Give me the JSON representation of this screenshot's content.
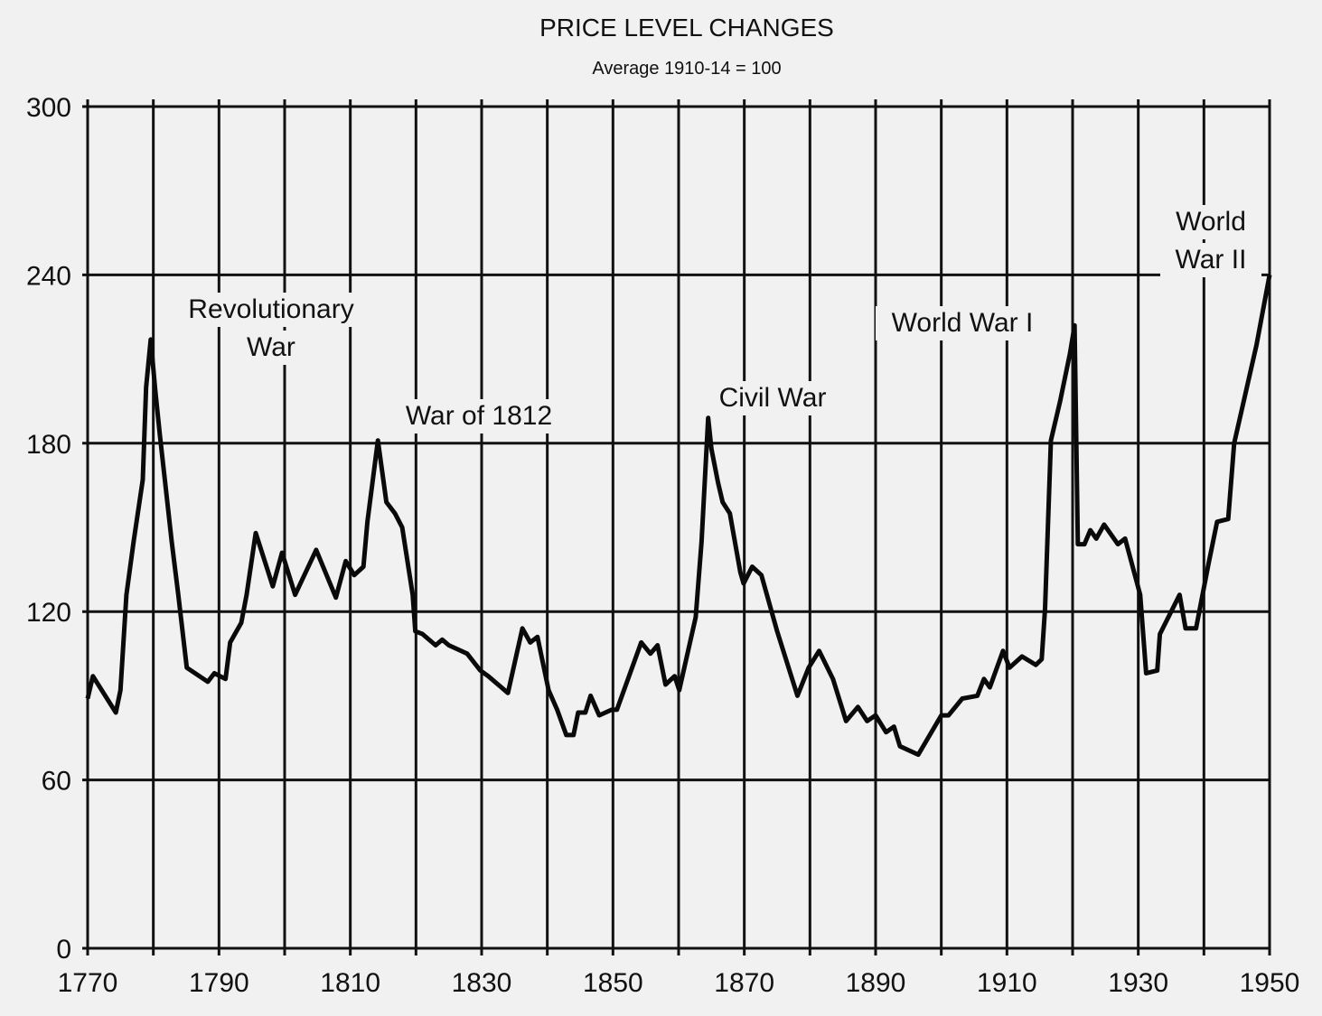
{
  "chart_data": {
    "type": "line",
    "title": "PRICE LEVEL CHANGES",
    "subtitle": "Average 1910-14 = 100",
    "xlabel": "",
    "ylabel": "",
    "xlim": [
      1770,
      1950
    ],
    "ylim": [
      0,
      300
    ],
    "grid": true,
    "x_ticks": [
      1770,
      1790,
      1810,
      1830,
      1850,
      1870,
      1890,
      1910,
      1930,
      1950
    ],
    "y_ticks": [
      0,
      60,
      120,
      180,
      240,
      300
    ],
    "series": [
      {
        "name": "Price level",
        "points": [
          [
            1770,
            89
          ],
          [
            1770.8,
            97
          ],
          [
            1774.3,
            84
          ],
          [
            1775,
            92
          ],
          [
            1775.9,
            126
          ],
          [
            1777,
            145
          ],
          [
            1778.4,
            167
          ],
          [
            1778.9,
            200
          ],
          [
            1779.6,
            217
          ],
          [
            1780.3,
            199
          ],
          [
            1781,
            183
          ],
          [
            1782.8,
            145
          ],
          [
            1783.8,
            126
          ],
          [
            1785.1,
            100
          ],
          [
            1788.3,
            95
          ],
          [
            1789.3,
            98
          ],
          [
            1791,
            96
          ],
          [
            1791.7,
            109
          ],
          [
            1793.4,
            116
          ],
          [
            1794.2,
            126
          ],
          [
            1795.6,
            148
          ],
          [
            1798.2,
            129
          ],
          [
            1799.6,
            141
          ],
          [
            1801.6,
            126
          ],
          [
            1804.8,
            142
          ],
          [
            1807.8,
            125
          ],
          [
            1809.3,
            138
          ],
          [
            1810.6,
            133
          ],
          [
            1812,
            136
          ],
          [
            1812.6,
            152
          ],
          [
            1814.2,
            181
          ],
          [
            1815.5,
            159
          ],
          [
            1816.8,
            155
          ],
          [
            1817.9,
            150
          ],
          [
            1819.5,
            126
          ],
          [
            1819.9,
            113
          ],
          [
            1821,
            112
          ],
          [
            1823,
            108
          ],
          [
            1824,
            110
          ],
          [
            1825,
            108
          ],
          [
            1827.8,
            105
          ],
          [
            1829.8,
            99
          ],
          [
            1831,
            97
          ],
          [
            1834,
            91
          ],
          [
            1836.2,
            114
          ],
          [
            1837.4,
            109
          ],
          [
            1838.5,
            111
          ],
          [
            1840.2,
            92
          ],
          [
            1841.5,
            85
          ],
          [
            1842.9,
            76
          ],
          [
            1844,
            76
          ],
          [
            1844.7,
            84
          ],
          [
            1845.8,
            84
          ],
          [
            1846.6,
            90
          ],
          [
            1847.9,
            83
          ],
          [
            1849.8,
            85
          ],
          [
            1850.6,
            85
          ],
          [
            1854.3,
            109
          ],
          [
            1855.7,
            105
          ],
          [
            1856.8,
            108
          ],
          [
            1858,
            94
          ],
          [
            1859.4,
            97
          ],
          [
            1860.1,
            92
          ],
          [
            1862.6,
            118
          ],
          [
            1863.5,
            145
          ],
          [
            1864.5,
            189
          ],
          [
            1865,
            178
          ],
          [
            1866,
            166
          ],
          [
            1866.7,
            159
          ],
          [
            1867.8,
            155
          ],
          [
            1869.4,
            134
          ],
          [
            1869.9,
            130
          ],
          [
            1871.2,
            136
          ],
          [
            1872.6,
            133
          ],
          [
            1875,
            113
          ],
          [
            1878.1,
            90
          ],
          [
            1879.8,
            100
          ],
          [
            1881.4,
            106
          ],
          [
            1883.5,
            96
          ],
          [
            1885.5,
            81
          ],
          [
            1887.3,
            86
          ],
          [
            1888.7,
            81
          ],
          [
            1890,
            83
          ],
          [
            1891.6,
            77
          ],
          [
            1892.8,
            79
          ],
          [
            1893.7,
            72
          ],
          [
            1896.5,
            69
          ],
          [
            1900,
            83
          ],
          [
            1901.1,
            83
          ],
          [
            1903.2,
            89
          ],
          [
            1905.5,
            90
          ],
          [
            1906.5,
            96
          ],
          [
            1907.4,
            93
          ],
          [
            1909.4,
            106
          ],
          [
            1910.4,
            100
          ],
          [
            1912.3,
            104
          ],
          [
            1914.4,
            101
          ],
          [
            1915.3,
            103
          ],
          [
            1915.8,
            121
          ],
          [
            1916.7,
            181
          ],
          [
            1918.1,
            195
          ],
          [
            1919.6,
            212
          ],
          [
            1920.3,
            222
          ],
          [
            1920.8,
            144
          ],
          [
            1921.8,
            144
          ],
          [
            1922.7,
            149
          ],
          [
            1923.6,
            146
          ],
          [
            1924.8,
            151
          ],
          [
            1926.9,
            144
          ],
          [
            1928,
            146
          ],
          [
            1930.3,
            126
          ],
          [
            1931.2,
            98
          ],
          [
            1932.9,
            99
          ],
          [
            1933.3,
            112
          ],
          [
            1936.3,
            126
          ],
          [
            1937.2,
            114
          ],
          [
            1938.8,
            114
          ],
          [
            1940.7,
            137
          ],
          [
            1942,
            152
          ],
          [
            1943.7,
            153
          ],
          [
            1944.6,
            180
          ],
          [
            1948,
            215
          ],
          [
            1950,
            240
          ]
        ]
      }
    ],
    "annotations": [
      {
        "lines": [
          "Revolutionary",
          "War"
        ],
        "year": 1780
      },
      {
        "lines": [
          "War of 1812"
        ],
        "year": 1812
      },
      {
        "lines": [
          "Civil War"
        ],
        "year": 1864
      },
      {
        "lines": [
          "World War I"
        ],
        "year": 1918
      },
      {
        "lines": [
          "World",
          "War II"
        ],
        "year": 1945
      }
    ]
  }
}
